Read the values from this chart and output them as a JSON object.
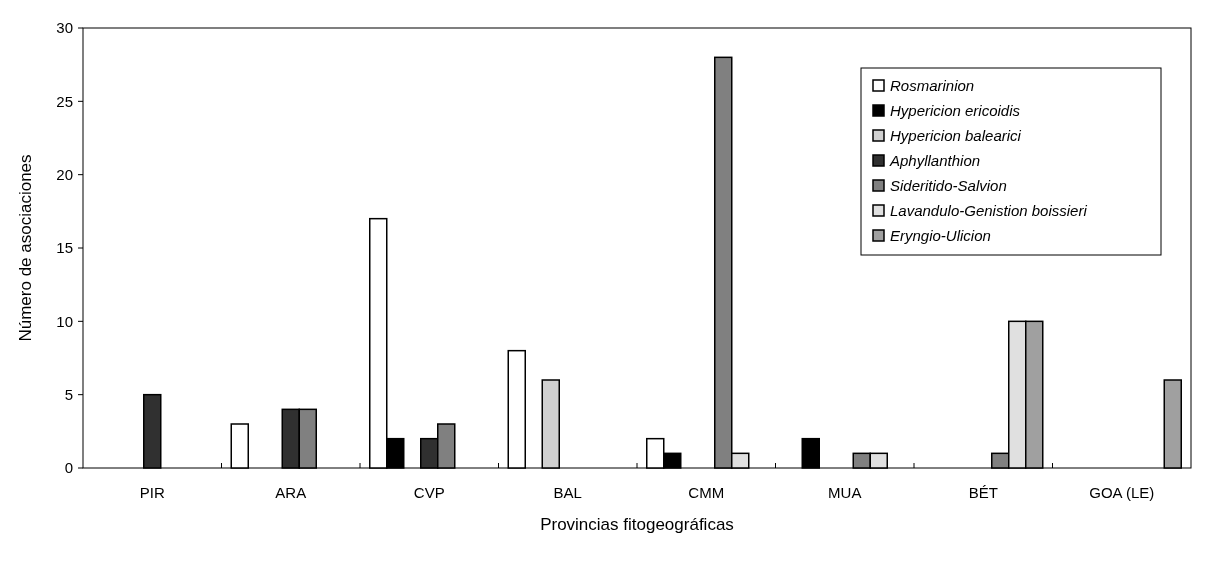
{
  "chart_data": {
    "type": "bar",
    "xlabel": "Provincias fitogeográficas",
    "ylabel": "Número de asociaciones",
    "categories": [
      "PIR",
      "ARA",
      "CVP",
      "BAL",
      "CMM",
      "MUA",
      "BÉT",
      "GOA (LE)"
    ],
    "series": [
      {
        "name": "Rosmarinion",
        "color": "#ffffff",
        "values": [
          null,
          3,
          17,
          8,
          2,
          null,
          null,
          null
        ]
      },
      {
        "name": "Hypericion ericoidis",
        "color": "#000000",
        "values": [
          null,
          null,
          2,
          null,
          1,
          2,
          null,
          null
        ]
      },
      {
        "name": "Hypericion balearici",
        "color": "#d0d0d0",
        "values": [
          null,
          null,
          null,
          6,
          null,
          null,
          null,
          null
        ]
      },
      {
        "name": "Aphyllanthion",
        "color": "#303030",
        "values": [
          5,
          4,
          2,
          null,
          null,
          null,
          null,
          null
        ]
      },
      {
        "name": "Sideritido-Salvion",
        "color": "#808080",
        "values": [
          null,
          4,
          3,
          null,
          28,
          1,
          1,
          null
        ]
      },
      {
        "name": "Lavandulo-Genistion boissieri",
        "color": "#e0e0e0",
        "values": [
          null,
          null,
          null,
          null,
          1,
          1,
          10,
          null
        ]
      },
      {
        "name": "Eryngio-Ulicion",
        "color": "#a0a0a0",
        "values": [
          null,
          null,
          null,
          null,
          null,
          null,
          10,
          6
        ]
      }
    ],
    "ylim": [
      0,
      30
    ],
    "yticks": [
      0,
      5,
      10,
      15,
      20,
      25,
      30
    ],
    "legend": "top right",
    "grid": false
  }
}
